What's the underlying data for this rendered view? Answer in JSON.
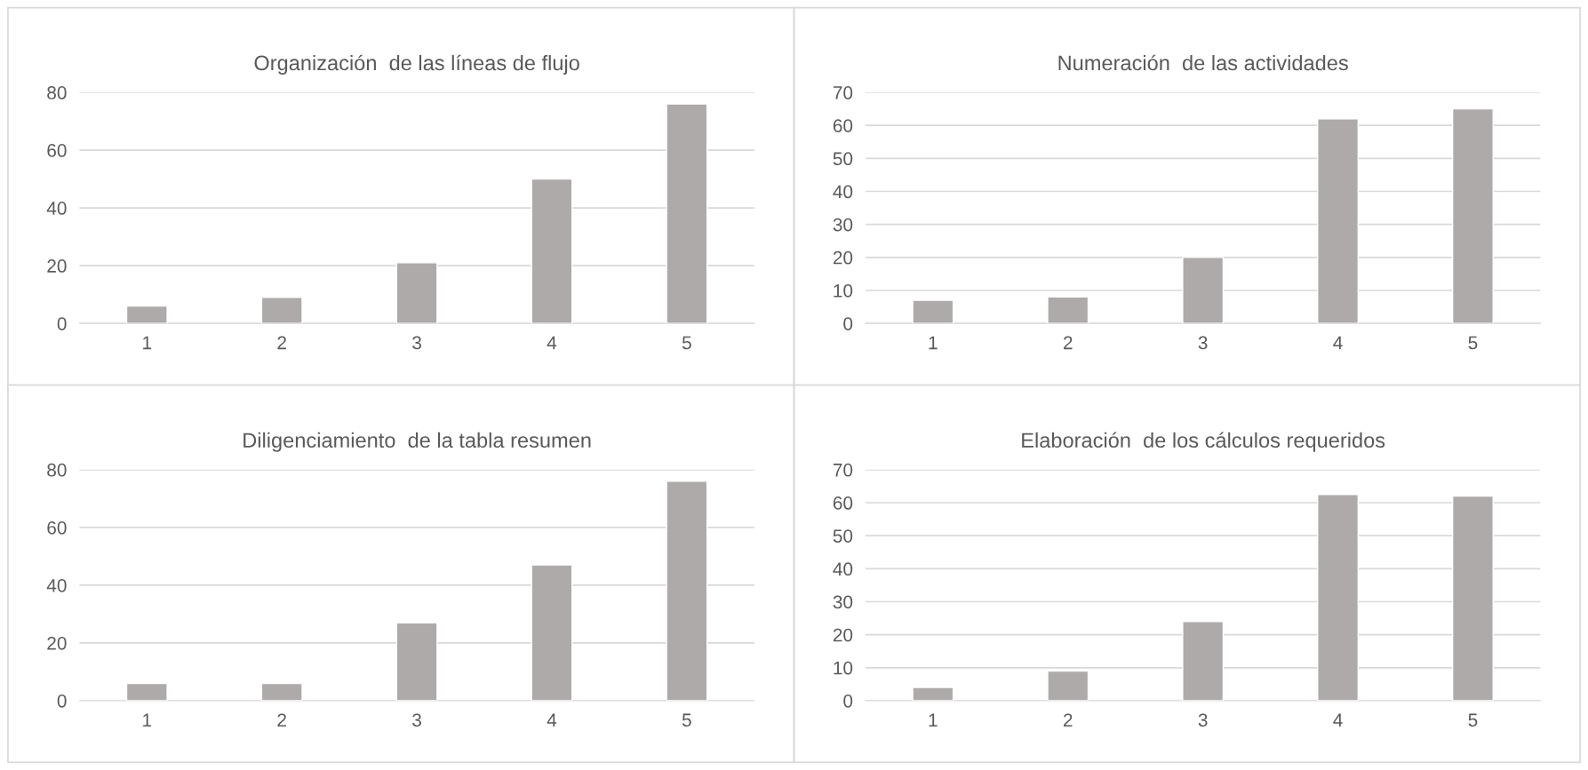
{
  "chart_data": [
    {
      "type": "bar",
      "title": "Organización  de las líneas de flujo",
      "categories": [
        "1",
        "2",
        "3",
        "4",
        "5"
      ],
      "values": [
        6,
        9,
        21,
        50,
        76
      ],
      "color": "#aeaaaa",
      "ylim": [
        0,
        80
      ],
      "yticks": [
        0,
        20,
        40,
        60,
        80
      ],
      "grid": "y"
    },
    {
      "type": "bar",
      "title": "Numeración  de las actividades",
      "categories": [
        "1",
        "2",
        "3",
        "4",
        "5"
      ],
      "values": [
        7,
        8,
        20,
        62,
        65
      ],
      "color": "#aeaaaa",
      "ylim": [
        0,
        70
      ],
      "yticks": [
        0,
        10,
        20,
        30,
        40,
        50,
        60,
        70
      ],
      "grid": "y"
    },
    {
      "type": "bar",
      "title": "Diligenciamiento  de la tabla resumen",
      "categories": [
        "1",
        "2",
        "3",
        "4",
        "5"
      ],
      "values": [
        6,
        6,
        27,
        47,
        76
      ],
      "color": "#aeaaaa",
      "ylim": [
        0,
        80
      ],
      "yticks": [
        0,
        20,
        40,
        60,
        80
      ],
      "grid": "y"
    },
    {
      "type": "bar",
      "title": "Elaboración  de los cálculos requeridos",
      "categories": [
        "1",
        "2",
        "3",
        "4",
        "5"
      ],
      "values": [
        4,
        9,
        24,
        62.5,
        62
      ],
      "color": "#aeaaaa",
      "ylim": [
        0,
        70
      ],
      "yticks": [
        0,
        10,
        20,
        30,
        40,
        50,
        60,
        70
      ],
      "grid": "y"
    }
  ]
}
